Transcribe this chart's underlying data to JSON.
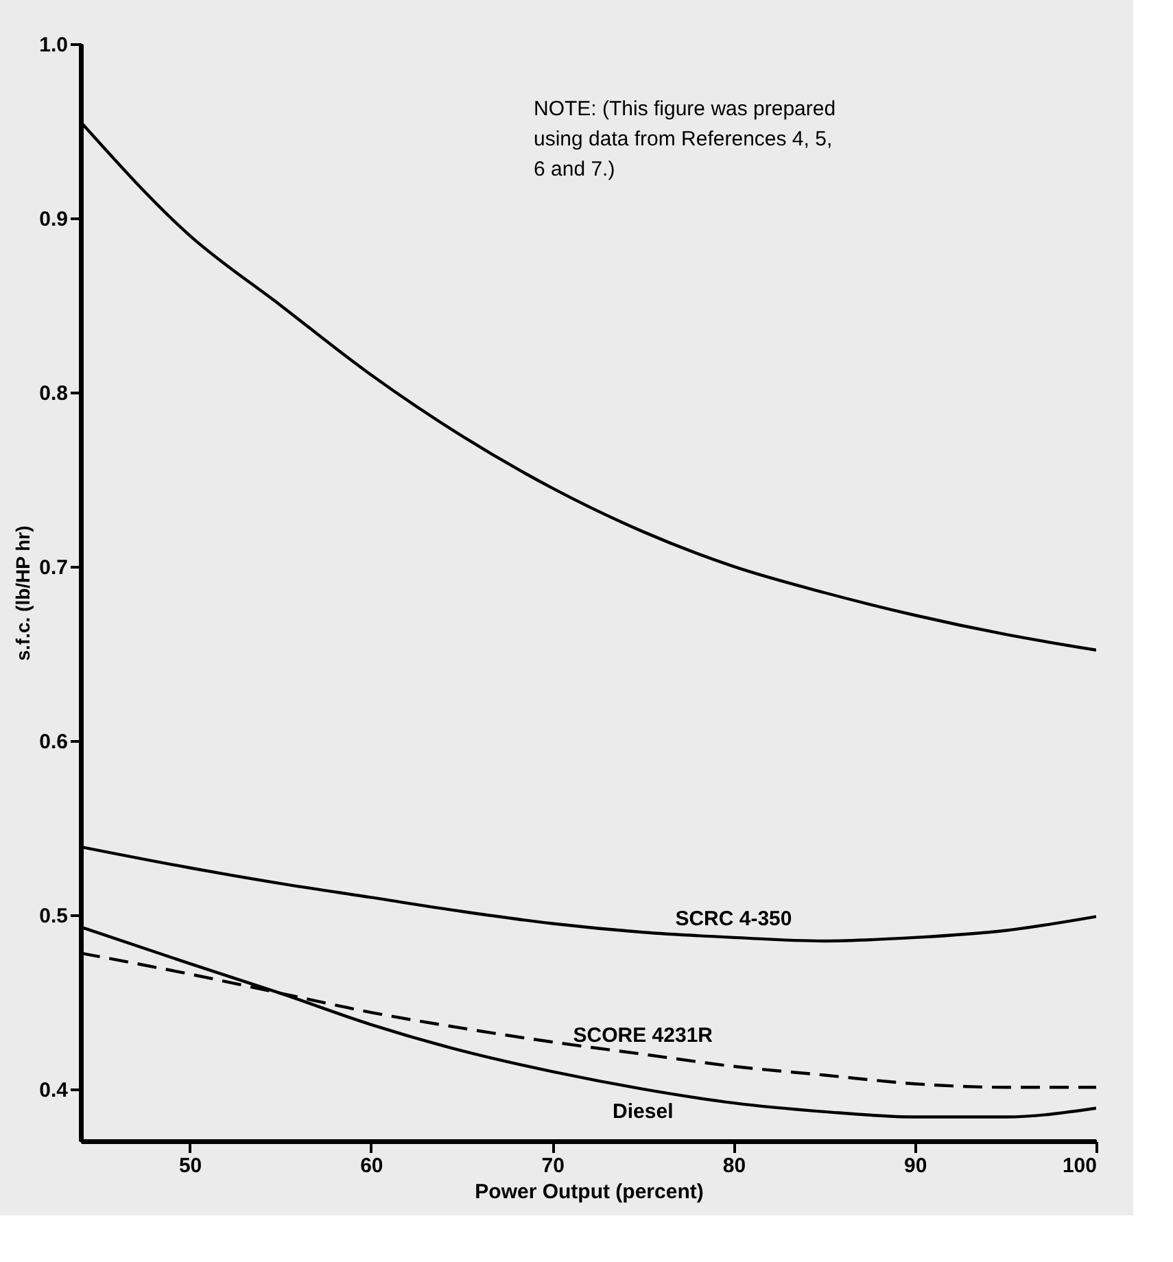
{
  "chart_data": {
    "type": "line",
    "xlabel": "Power Output (percent)",
    "ylabel": "s.f.c. (lb/HP hr)",
    "x": [
      44,
      50,
      55,
      60,
      65,
      70,
      75,
      80,
      85,
      90,
      95,
      100
    ],
    "series": [
      {
        "color": "#000000",
        "line_style": "solid",
        "values": [
          0.955,
          0.89,
          0.85,
          0.81,
          0.775,
          0.745,
          0.72,
          0.7,
          0.685,
          0.672,
          0.661,
          0.652
        ]
      },
      {
        "name": "SCRC 4-350",
        "color": "#000000",
        "line_style": "solid",
        "values": [
          0.539,
          0.527,
          0.518,
          0.51,
          0.502,
          0.495,
          0.49,
          0.487,
          0.485,
          0.487,
          0.491,
          0.499
        ]
      },
      {
        "name": "SCORE 4231R",
        "color": "#000000",
        "line_style": "dashed",
        "values": [
          0.478,
          0.466,
          0.455,
          0.444,
          0.435,
          0.427,
          0.42,
          0.413,
          0.408,
          0.403,
          0.401,
          0.401
        ]
      },
      {
        "name": "Diesel",
        "color": "#000000",
        "line_style": "solid",
        "values": [
          0.493,
          0.472,
          0.455,
          0.437,
          0.422,
          0.41,
          0.4,
          0.392,
          0.387,
          0.384,
          0.384,
          0.389
        ]
      }
    ],
    "xlim": [
      44,
      100
    ],
    "xticks": [
      50,
      60,
      70,
      80,
      90,
      100
    ],
    "ylim": [
      0.37,
      1.0
    ],
    "yticks": [
      {
        "value": 0.4,
        "label": "0.4"
      },
      {
        "value": 0.5,
        "label": "0.5"
      },
      {
        "value": 0.6,
        "label": "0.6"
      },
      {
        "value": 0.7,
        "label": "0.7"
      },
      {
        "value": 0.8,
        "label": "0.8"
      },
      {
        "value": 0.9,
        "label": "0.9"
      },
      {
        "value": 1.0,
        "label": "1.0"
      }
    ],
    "annotations": [
      "NOTE: (This figure was prepared using data from References 4, 5, 6 and 7.)"
    ],
    "grid": false
  }
}
